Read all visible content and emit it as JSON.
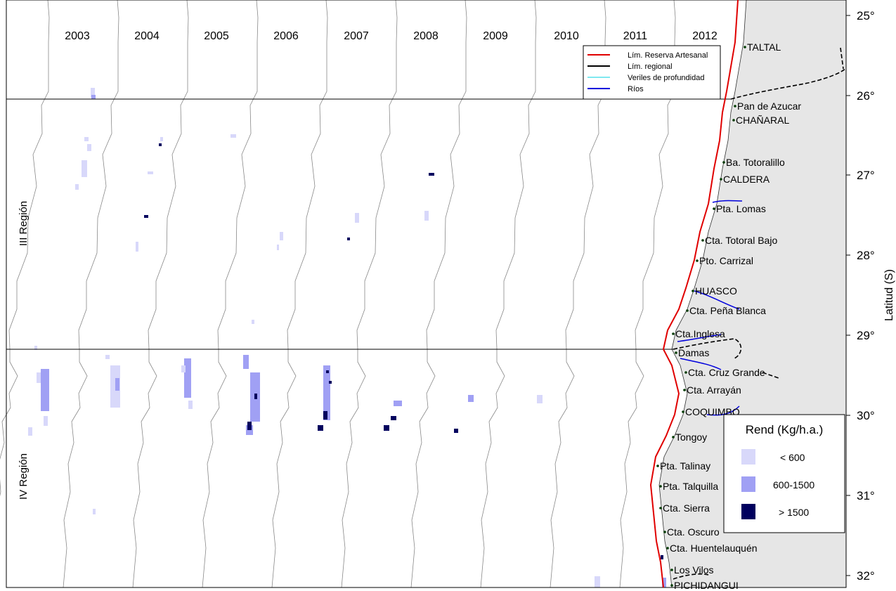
{
  "years": [
    "2003",
    "2004",
    "2005",
    "2006",
    "2007",
    "2008",
    "2009",
    "2010",
    "2011",
    "2012"
  ],
  "latitudes": [
    "25°",
    "26°",
    "27°",
    "28°",
    "29°",
    "30°",
    "31°",
    "32°"
  ],
  "axis_label": "Latitud (S)",
  "regions": [
    "III Región",
    "IV Región"
  ],
  "legend_lines": [
    {
      "label": "Lím. Reserva Artesanal",
      "color": "#e00000"
    },
    {
      "label": "Lím. regional",
      "color": "#000000"
    },
    {
      "label": "Veriles de profundidad",
      "color": "#7fe8f0"
    },
    {
      "label": "Ríos",
      "color": "#0000dd"
    }
  ],
  "rend_legend": {
    "title": "Rend (Kg/h.a.)",
    "classes": [
      {
        "label": "< 600",
        "color": "#d8d8fa"
      },
      {
        "label": "600-1500",
        "color": "#a0a0f4"
      },
      {
        "label": "> 1500",
        "color": "#00005e"
      }
    ]
  },
  "places": [
    "TALTAL",
    "Pan de Azucar",
    "CHAÑARAL",
    "Ba. Totoralillo",
    "CALDERA",
    "Pta. Lomas",
    "Cta. Totoral Bajo",
    "Pto. Carrizal",
    "HUASCO",
    "Cta. Peña Blanca",
    "Cta.Inglesa",
    "Damas",
    "Cta. Cruz Grande",
    "Cta. Arrayán",
    "COQUIMBO",
    "Tongoy",
    "Pta. Talinay",
    "Pta. Talquilla",
    "Cta. Sierra",
    "Cta. Oscuro",
    "Cta. Huentelauquén",
    "Los Vilos",
    "PICHIDANGUI"
  ],
  "colors": {
    "land": "#e6e6e6",
    "coast": "#888888",
    "reserve": "#e00000",
    "river": "#0000dd"
  }
}
